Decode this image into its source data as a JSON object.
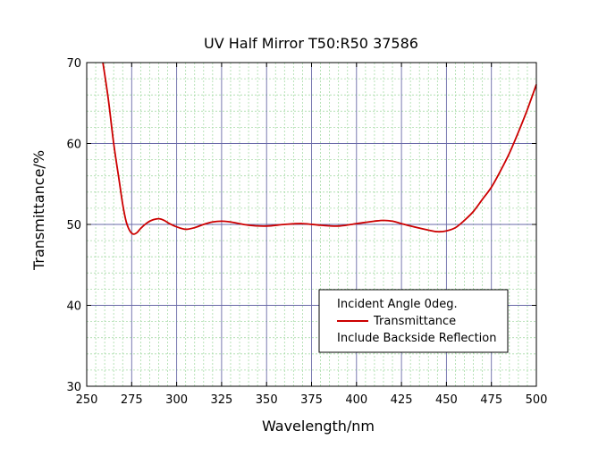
{
  "chart_data": {
    "type": "line",
    "title": "UV Half Mirror T50:R50  37586",
    "xlabel": "Wavelength/nm",
    "ylabel": "Transmittance/%",
    "xlim": [
      250,
      500
    ],
    "ylim": [
      30,
      70
    ],
    "xticks": [
      250,
      275,
      300,
      325,
      350,
      375,
      400,
      425,
      450,
      475,
      500
    ],
    "yticks": [
      30,
      40,
      50,
      60,
      70
    ],
    "grid": true,
    "minor_grid": true,
    "legend_position": "bottom-right",
    "legend": {
      "header": "Incident Angle 0deg.",
      "footer": "Include Backside Reflection"
    },
    "colors": {
      "series": "#cc0000",
      "major_grid": "#6a6aa8",
      "minor_grid": "#a8dca8"
    },
    "series": [
      {
        "name": "Transmittance",
        "x": [
          259,
          262,
          265,
          268,
          270,
          272,
          274,
          276,
          278,
          280,
          283,
          286,
          290,
          293,
          296,
          300,
          305,
          310,
          315,
          320,
          325,
          330,
          340,
          350,
          360,
          370,
          380,
          390,
          400,
          410,
          415,
          420,
          425,
          430,
          440,
          445,
          450,
          455,
          460,
          465,
          470,
          475,
          480,
          485,
          490,
          495,
          500
        ],
        "y": [
          70.0,
          65.5,
          60.0,
          55.5,
          52.5,
          50.3,
          49.2,
          48.8,
          49.0,
          49.5,
          50.1,
          50.5,
          50.7,
          50.5,
          50.1,
          49.7,
          49.4,
          49.6,
          50.0,
          50.3,
          50.4,
          50.3,
          49.9,
          49.8,
          50.0,
          50.1,
          49.9,
          49.8,
          50.1,
          50.4,
          50.5,
          50.4,
          50.1,
          49.8,
          49.3,
          49.1,
          49.2,
          49.6,
          50.5,
          51.6,
          53.1,
          54.6,
          56.6,
          58.8,
          61.4,
          64.2,
          67.3
        ]
      }
    ]
  }
}
